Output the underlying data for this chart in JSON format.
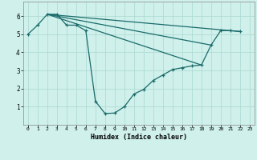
{
  "xlabel": "Humidex (Indice chaleur)",
  "ylabel": "",
  "bg_color": "#cff0eb",
  "line_color": "#1a6b6b",
  "grid_color": "#aad8d0",
  "xlim": [
    -0.5,
    23.5
  ],
  "ylim": [
    0,
    6.8
  ],
  "yticks": [
    1,
    2,
    3,
    4,
    5,
    6
  ],
  "xticks": [
    0,
    1,
    2,
    3,
    4,
    5,
    6,
    7,
    8,
    9,
    10,
    11,
    12,
    13,
    14,
    15,
    16,
    17,
    18,
    19,
    20,
    21,
    22,
    23
  ],
  "main_line": {
    "x": [
      0,
      1,
      2,
      3,
      4,
      5,
      6,
      7,
      8,
      9,
      10,
      11,
      12,
      13,
      14,
      15,
      16,
      17,
      18,
      19,
      20,
      21,
      22
    ],
    "y": [
      5.0,
      5.5,
      6.1,
      6.1,
      5.5,
      5.5,
      5.2,
      1.3,
      0.62,
      0.65,
      1.0,
      1.7,
      1.95,
      2.45,
      2.75,
      3.05,
      3.15,
      3.25,
      3.3,
      4.4,
      5.2,
      5.2,
      5.15
    ]
  },
  "extra_lines": [
    {
      "x": [
        2,
        22
      ],
      "y": [
        6.1,
        5.15
      ]
    },
    {
      "x": [
        2,
        19
      ],
      "y": [
        6.1,
        4.4
      ]
    },
    {
      "x": [
        2,
        18
      ],
      "y": [
        6.1,
        3.3
      ]
    }
  ]
}
